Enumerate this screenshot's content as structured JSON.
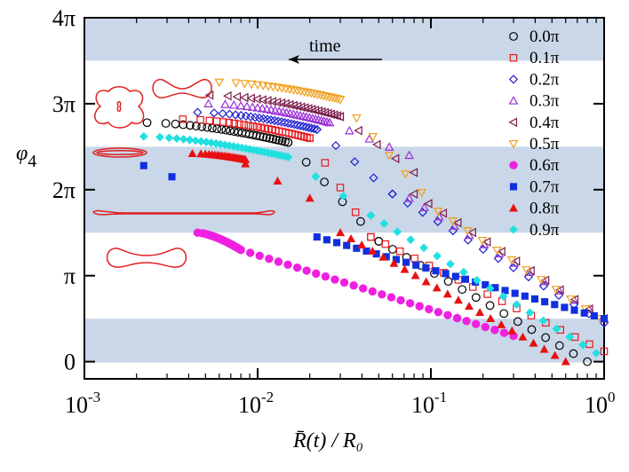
{
  "chart_data": {
    "type": "scatter",
    "title": "",
    "xlabel": "R̄(t) / R₀",
    "ylabel": "φ4",
    "xscale": "log",
    "xlim": [
      0.001,
      1
    ],
    "ylim": [
      -0.2,
      4.0
    ],
    "x_ticks": [
      {
        "value": 0.001,
        "base": "10",
        "exp": "-3"
      },
      {
        "value": 0.01,
        "base": "10",
        "exp": "-2"
      },
      {
        "value": 0.1,
        "base": "10",
        "exp": "-1"
      },
      {
        "value": 1,
        "base": "10",
        "exp": "0"
      }
    ],
    "y_ticks": [
      {
        "value": 0,
        "label": "0"
      },
      {
        "value": 1,
        "label": "π"
      },
      {
        "value": 2,
        "label": "2π"
      },
      {
        "value": 3,
        "label": "3π"
      },
      {
        "value": 4,
        "label": "4π"
      }
    ],
    "y_unit_note": "y values in units of π",
    "bands": [
      [
        -0.01,
        0.5
      ],
      [
        1.5,
        2.5
      ],
      [
        3.5,
        4.0
      ]
    ],
    "band_color": "#c9d7e8",
    "legend_position": "top-right",
    "annotation": {
      "text": "time",
      "arrow_direction": "left"
    },
    "series": [
      {
        "name": "0.0π",
        "color": "#000000",
        "marker": "circle-open",
        "segments": [
          {
            "x0": 0.0023,
            "x1": 0.015,
            "y0": 2.78,
            "y1": 2.55,
            "n": 30,
            "m": 0.6
          },
          {
            "x0": 0.015,
            "x1": 0.05,
            "y0": 2.55,
            "y1": 1.4,
            "n": 6
          },
          {
            "x0": 0.05,
            "x1": 0.8,
            "y0": 1.4,
            "y1": 0.0,
            "n": 16
          }
        ]
      },
      {
        "name": "0.1π",
        "color": "#e8191e",
        "marker": "square-open",
        "segments": [
          {
            "x0": 0.0037,
            "x1": 0.02,
            "y0": 2.82,
            "y1": 2.6,
            "n": 28,
            "m": 0.6
          },
          {
            "x0": 0.02,
            "x1": 0.045,
            "y0": 2.6,
            "y1": 1.45,
            "n": 5
          },
          {
            "x0": 0.045,
            "x1": 1.0,
            "y0": 1.45,
            "y1": 0.12,
            "n": 17
          }
        ]
      },
      {
        "name": "0.2π",
        "color": "#2020d0",
        "marker": "diamond-open",
        "segments": [
          {
            "x0": 0.0045,
            "x1": 0.022,
            "y0": 2.9,
            "y1": 2.7,
            "n": 28,
            "m": 0.6
          },
          {
            "x0": 0.022,
            "x1": 0.06,
            "y0": 2.7,
            "y1": 1.95,
            "n": 5
          },
          {
            "x0": 0.06,
            "x1": 1.0,
            "y0": 1.95,
            "y1": 0.45,
            "n": 15
          }
        ]
      },
      {
        "name": "0.3π",
        "color": "#9a2fd6",
        "marker": "triangle-up-open",
        "segments": [
          {
            "x0": 0.0052,
            "x1": 0.026,
            "y0": 3.0,
            "y1": 2.78,
            "n": 28,
            "m": 0.6
          },
          {
            "x0": 0.026,
            "x1": 0.075,
            "y0": 2.78,
            "y1": 2.4,
            "n": 5
          },
          {
            "x0": 0.075,
            "x1": 1.0,
            "y0": 1.9,
            "y1": 0.5,
            "n": 14
          }
        ]
      },
      {
        "name": "0.4π",
        "color": "#7a1e4a",
        "marker": "triangle-left-open",
        "segments": [
          {
            "x0": 0.0053,
            "x1": 0.03,
            "y0": 3.1,
            "y1": 2.85,
            "n": 28,
            "m": 0.6
          },
          {
            "x0": 0.03,
            "x1": 0.08,
            "y0": 2.85,
            "y1": 2.2,
            "n": 5
          },
          {
            "x0": 0.08,
            "x1": 1.0,
            "y0": 1.95,
            "y1": 0.5,
            "n": 14
          }
        ]
      },
      {
        "name": "0.5π",
        "color": "#f0a020",
        "marker": "triangle-down-open",
        "segments": [
          {
            "x0": 0.006,
            "x1": 0.03,
            "y0": 3.25,
            "y1": 3.05,
            "n": 28,
            "m": 0.6
          },
          {
            "x0": 0.03,
            "x1": 0.11,
            "y0": 3.05,
            "y1": 1.75,
            "n": 7
          },
          {
            "x0": 0.11,
            "x1": 0.95,
            "y0": 1.75,
            "y1": 0.5,
            "n": 12
          }
        ]
      },
      {
        "name": "0.6π",
        "color": "#f020e0",
        "marker": "circle-filled",
        "segments": [
          {
            "x0": 0.0045,
            "x1": 0.008,
            "y0": 1.5,
            "y1": 1.3,
            "n": 30,
            "m": 0.65
          },
          {
            "x0": 0.008,
            "x1": 0.3,
            "y0": 1.3,
            "y1": 0.3,
            "n": 30
          }
        ]
      },
      {
        "name": "0.7π",
        "color": "#1030e0",
        "marker": "square-filled",
        "segments": [
          {
            "x0": 0.0022,
            "x1": 0.0032,
            "y0": 2.28,
            "y1": 2.15,
            "n": 2
          },
          {
            "x0": 0.022,
            "x1": 1.0,
            "y0": 1.45,
            "y1": 0.5,
            "n": 30
          }
        ]
      },
      {
        "name": "0.8π",
        "color": "#e81010",
        "marker": "triangle-up-filled",
        "segments": [
          {
            "x0": 0.0042,
            "x1": 0.0085,
            "y0": 2.42,
            "y1": 2.35,
            "n": 22,
            "m": 0.6
          },
          {
            "x0": 0.0085,
            "x1": 0.02,
            "y0": 2.3,
            "y1": 1.9,
            "n": 3
          },
          {
            "x0": 0.03,
            "x1": 0.6,
            "y0": 1.5,
            "y1": 0.0,
            "n": 22
          }
        ]
      },
      {
        "name": "0.9π",
        "color": "#20e0e0",
        "marker": "diamond-filled",
        "segments": [
          {
            "x0": 0.0022,
            "x1": 0.015,
            "y0": 2.62,
            "y1": 2.38,
            "n": 30,
            "m": 0.65
          },
          {
            "x0": 0.015,
            "x1": 0.045,
            "y0": 2.38,
            "y1": 1.7,
            "n": 4
          },
          {
            "x0": 0.045,
            "x1": 0.9,
            "y0": 1.7,
            "y1": 0.1,
            "n": 18
          }
        ]
      }
    ],
    "shapes_color": "#e02020"
  }
}
